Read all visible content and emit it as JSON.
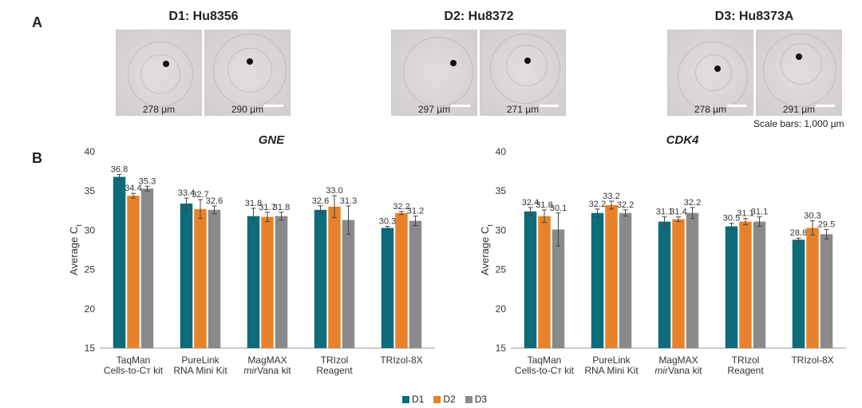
{
  "panel_a": {
    "letter": "A",
    "donors": [
      {
        "title": "D1: Hu8356",
        "sizes": [
          "278 µm",
          "290 µm"
        ]
      },
      {
        "title": "D2: Hu8372",
        "sizes": [
          "297 µm",
          "271 µm"
        ]
      },
      {
        "title": "D3: Hu8373A",
        "sizes": [
          "278 µm",
          "291 µm"
        ]
      }
    ],
    "scale_note": "Scale bars: 1,000 µm"
  },
  "panel_b": {
    "letter": "B"
  },
  "colors": {
    "D1": "#0e6b7a",
    "D2": "#e8822a",
    "D3": "#8a8a8a"
  },
  "chart_data": [
    {
      "type": "bar",
      "title": "GNE",
      "ylabel": "Average Ct",
      "ylim": [
        15,
        40
      ],
      "yticks": [
        15,
        20,
        25,
        30,
        35,
        40
      ],
      "categories": [
        [
          "TaqMan",
          "Cells-to-Cт kit"
        ],
        [
          "PureLink",
          "RNA Mini Kit"
        ],
        [
          "MagMAX",
          "mirVana kit"
        ],
        [
          "TRIzol",
          "Reagent"
        ],
        [
          "TRIzol-8X"
        ]
      ],
      "series": [
        {
          "name": "D1",
          "values": [
            36.8,
            33.4,
            31.8,
            32.6,
            30.3
          ],
          "errors": [
            0.3,
            0.7,
            1.0,
            0.5,
            0.2
          ]
        },
        {
          "name": "D2",
          "values": [
            34.4,
            32.7,
            31.7,
            33.0,
            32.2
          ],
          "errors": [
            0.3,
            1.2,
            0.6,
            1.4,
            0.2
          ]
        },
        {
          "name": "D3",
          "values": [
            35.3,
            32.6,
            31.8,
            31.3,
            31.2
          ],
          "errors": [
            0.3,
            0.5,
            0.5,
            1.8,
            0.6
          ]
        }
      ]
    },
    {
      "type": "bar",
      "title": "CDK4",
      "ylabel": "Average Ct",
      "ylim": [
        15,
        40
      ],
      "yticks": [
        15,
        20,
        25,
        30,
        35,
        40
      ],
      "categories": [
        [
          "TaqMan",
          "Cells-to-Cт kit"
        ],
        [
          "PureLink",
          "RNA Mini Kit"
        ],
        [
          "MagMAX",
          "mirVana kit"
        ],
        [
          "TRIzol",
          "Reagent"
        ],
        [
          "TRIzol-8X"
        ]
      ],
      "series": [
        {
          "name": "D1",
          "values": [
            32.4,
            32.2,
            31.1,
            30.5,
            28.8
          ],
          "errors": [
            0.5,
            0.5,
            0.6,
            0.4,
            0.2
          ]
        },
        {
          "name": "D2",
          "values": [
            31.8,
            33.2,
            31.4,
            31.1,
            30.3
          ],
          "errors": [
            0.8,
            0.5,
            0.3,
            0.4,
            0.9
          ]
        },
        {
          "name": "D3",
          "values": [
            30.1,
            32.2,
            32.2,
            31.1,
            29.5
          ],
          "errors": [
            2.1,
            0.4,
            0.7,
            0.6,
            0.6
          ]
        }
      ]
    }
  ],
  "legend": [
    "D1",
    "D2",
    "D3"
  ]
}
